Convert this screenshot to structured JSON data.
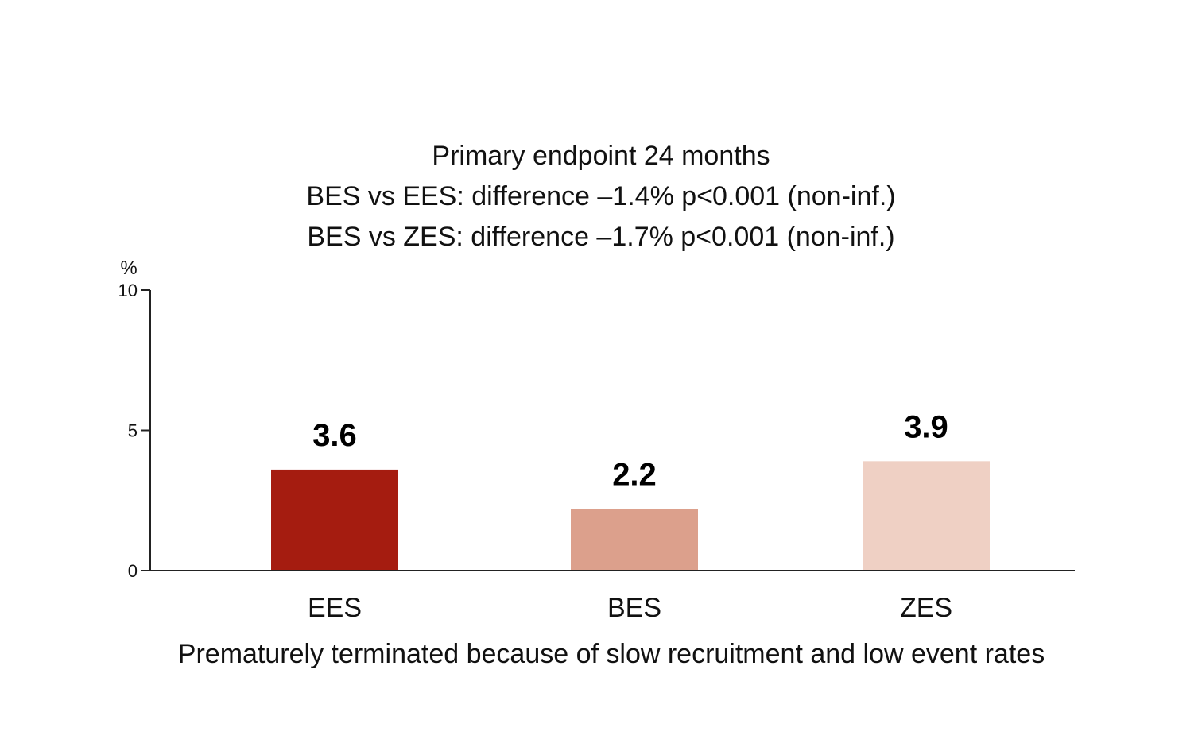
{
  "chart_data": {
    "type": "bar",
    "title_lines": [
      "Primary endpoint 24 months",
      "BES vs EES: difference –1.4% p<0.001 (non-inf.)",
      "BES vs ZES: difference –1.7% p<0.001 (non-inf.)"
    ],
    "ylabel": "%",
    "xlabel": "",
    "ylim": [
      0,
      10
    ],
    "yticks": [
      0,
      5,
      10
    ],
    "yticks_labels": [
      "0",
      "5",
      "10"
    ],
    "categories": [
      "EES",
      "BES",
      "ZES"
    ],
    "values": [
      3.6,
      2.2,
      3.9
    ],
    "value_labels": [
      "3.6",
      "2.2",
      "3.9"
    ],
    "colors": [
      "#a51c10",
      "#dca08c",
      "#efd0c4"
    ],
    "grid": false,
    "legend": "none",
    "footnote": "Prematurely terminated because of slow recruitment and low event rates"
  }
}
